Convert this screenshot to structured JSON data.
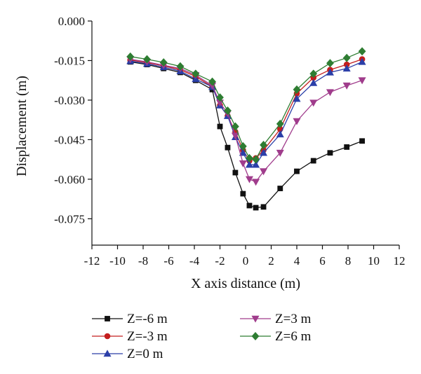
{
  "chart_data": {
    "type": "line",
    "title": "",
    "xlabel": "X axis distance (m)",
    "ylabel": "Displacement (m)",
    "xlim": [
      -12,
      12
    ],
    "ylim": [
      -0.085,
      0.0
    ],
    "xticks": [
      -12,
      -10,
      -8,
      -6,
      -4,
      -2,
      0,
      2,
      4,
      6,
      8,
      10,
      12
    ],
    "xtick_labels": [
      "-12",
      "-10",
      "-8",
      "-6",
      "-4",
      "-2",
      "0",
      "2",
      "4",
      "6",
      "8",
      "10",
      "12"
    ],
    "yticks": [
      0.0,
      -0.015,
      -0.03,
      -0.045,
      -0.06,
      -0.075
    ],
    "ytick_labels": [
      "0.000",
      "-0.015",
      "-0.030",
      "-0.045",
      "-0.060",
      "-0.075"
    ],
    "grid": false,
    "legend_position": "bottom",
    "x": [
      -9.0,
      -7.7,
      -6.4,
      -5.1,
      -3.9,
      -2.6,
      -2.0,
      -1.4,
      -0.8,
      -0.2,
      0.3,
      0.8,
      1.4,
      2.7,
      4.0,
      5.3,
      6.6,
      7.9,
      9.1
    ],
    "series": [
      {
        "name": "Z=-6 m",
        "color": "#111111",
        "marker": "square",
        "values": [
          -0.0155,
          -0.0165,
          -0.018,
          -0.0195,
          -0.0225,
          -0.026,
          -0.04,
          -0.048,
          -0.0575,
          -0.0655,
          -0.07,
          -0.0708,
          -0.0705,
          -0.0635,
          -0.057,
          -0.053,
          -0.05,
          -0.0478,
          -0.0455
        ]
      },
      {
        "name": "Z=-3 m",
        "color": "#c41e1e",
        "marker": "circle",
        "values": [
          -0.0148,
          -0.0158,
          -0.017,
          -0.0185,
          -0.021,
          -0.025,
          -0.032,
          -0.036,
          -0.042,
          -0.049,
          -0.053,
          -0.052,
          -0.049,
          -0.041,
          -0.0275,
          -0.0215,
          -0.0185,
          -0.0165,
          -0.0145
        ]
      },
      {
        "name": "Z=0 m",
        "color": "#2b3fa8",
        "marker": "triangle-up",
        "values": [
          -0.0152,
          -0.0162,
          -0.0175,
          -0.019,
          -0.022,
          -0.025,
          -0.032,
          -0.036,
          -0.044,
          -0.05,
          -0.0545,
          -0.0545,
          -0.05,
          -0.043,
          -0.0295,
          -0.0235,
          -0.0195,
          -0.018,
          -0.0155
        ]
      },
      {
        "name": "Z=3 m",
        "color": "#a03c8c",
        "marker": "triangle-down",
        "values": [
          -0.0145,
          -0.0155,
          -0.0168,
          -0.018,
          -0.0205,
          -0.0245,
          -0.031,
          -0.035,
          -0.0435,
          -0.054,
          -0.06,
          -0.061,
          -0.057,
          -0.05,
          -0.038,
          -0.031,
          -0.027,
          -0.0245,
          -0.0225
        ]
      },
      {
        "name": "Z=6 m",
        "color": "#2e7d32",
        "marker": "diamond",
        "values": [
          -0.0135,
          -0.0145,
          -0.0157,
          -0.0172,
          -0.02,
          -0.023,
          -0.029,
          -0.034,
          -0.04,
          -0.0475,
          -0.052,
          -0.0525,
          -0.047,
          -0.039,
          -0.026,
          -0.02,
          -0.016,
          -0.014,
          -0.0115
        ]
      }
    ]
  }
}
